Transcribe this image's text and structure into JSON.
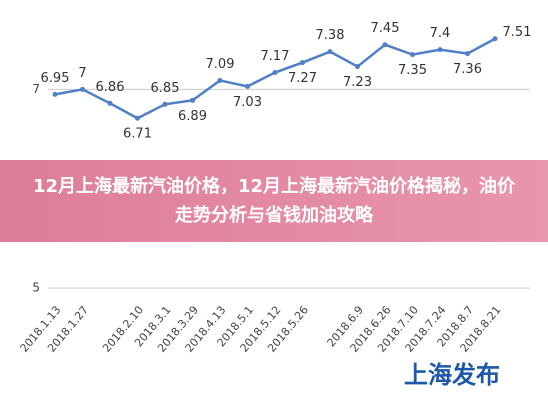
{
  "chart_data": {
    "type": "line",
    "categories": [
      "2018.1.13",
      "2018.1.27",
      null,
      "2018.2.10",
      "2018.3.1",
      "2018.3.29",
      "2018.4.13",
      "2018.5.1",
      "2018.5.12",
      "2018.5.26",
      null,
      "2018.6.9",
      "2018.6.26",
      "2018.7.10",
      "2018.7.24",
      "2018.8.7",
      "2018.8.21"
    ],
    "values": [
      6.95,
      7,
      6.86,
      6.71,
      6.85,
      6.89,
      7.09,
      7.03,
      7.17,
      7.27,
      7.38,
      7.23,
      7.45,
      7.35,
      7.4,
      7.36,
      7.51
    ],
    "color": "#4f7fc6",
    "ylim": [
      4.9,
      7.9
    ],
    "yticks": [
      5,
      7
    ],
    "grid": true
  },
  "banner": {
    "title": "12月上海最新汽油价格，12月上海最新汽油价格揭秘，油价走势分析与省钱加油攻略"
  },
  "logo": "上海发布"
}
